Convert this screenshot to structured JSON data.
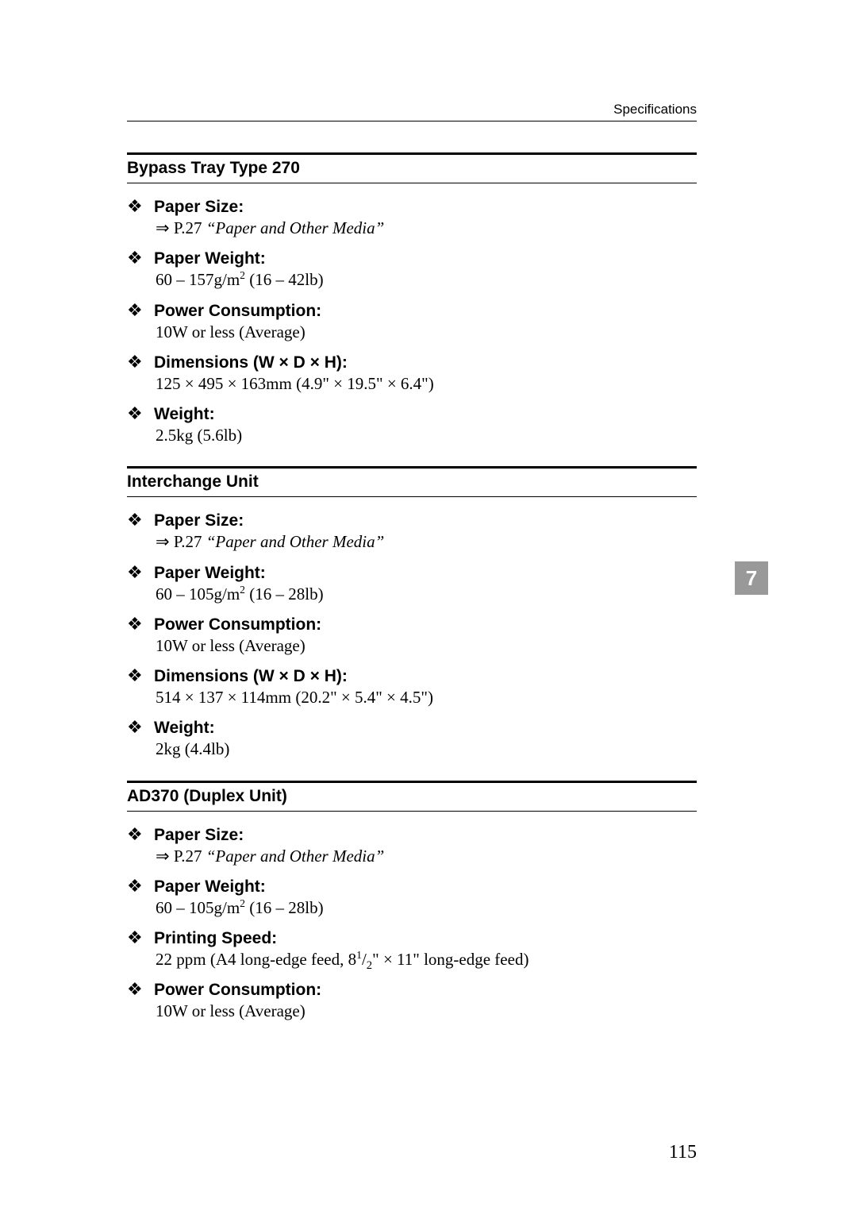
{
  "header": {
    "running_head": "Specifications"
  },
  "sections": [
    {
      "title": "Bypass Tray Type 270",
      "items": [
        {
          "label": "Paper Size:",
          "body_html": "⇒ P.27 <span class=\"ref-italic\">“Paper and Other Media”</span>"
        },
        {
          "label": "Paper Weight:",
          "body_html": "60 – 157g/m<sup>2</sup> (16 – 42lb)"
        },
        {
          "label": "Power Consumption:",
          "body_html": "10W or less (Average)"
        },
        {
          "label": "Dimensions (W × D × H):",
          "body_html": "125 × 495 × 163mm (4.9\" × 19.5\" × 6.4\")"
        },
        {
          "label": "Weight:",
          "body_html": "2.5kg (5.6lb)"
        }
      ]
    },
    {
      "title": "Interchange Unit",
      "items": [
        {
          "label": "Paper Size:",
          "body_html": "⇒ P.27 <span class=\"ref-italic\">“Paper and Other Media”</span>"
        },
        {
          "label": "Paper Weight:",
          "body_html": "60 – 105g/m<sup>2</sup> (16 – 28lb)"
        },
        {
          "label": "Power Consumption:",
          "body_html": "10W or less (Average)"
        },
        {
          "label": "Dimensions (W × D × H):",
          "body_html": "514 × 137 × 114mm (20.2\" × 5.4\" × 4.5\")"
        },
        {
          "label": "Weight:",
          "body_html": "2kg (4.4lb)"
        }
      ]
    },
    {
      "title": "AD370 (Duplex Unit)",
      "items": [
        {
          "label": "Paper Size:",
          "body_html": "⇒ P.27 <span class=\"ref-italic\">“Paper and Other Media”</span>"
        },
        {
          "label": "Paper Weight:",
          "body_html": "60 – 105g/m<sup>2</sup> (16 – 28lb)"
        },
        {
          "label": "Printing Speed:",
          "body_html": "22 ppm (A4 long-edge feed, 8<sup>1</sup>/<sub>2</sub>\" × 11\" long-edge feed)"
        },
        {
          "label": "Power Consumption:",
          "body_html": "10W or less (Average)"
        }
      ]
    }
  ],
  "chapter_tab": "7",
  "page_number": "115",
  "bullet_glyph": "❖",
  "colors": {
    "tab_bg": "#999999",
    "tab_fg": "#ffffff",
    "text": "#000000",
    "page_bg": "#ffffff"
  }
}
